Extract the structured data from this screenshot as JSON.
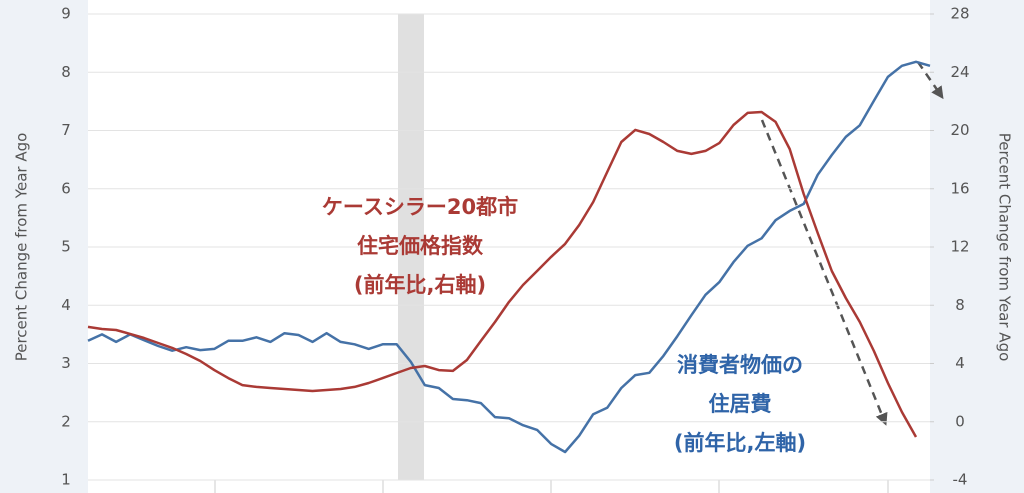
{
  "chart_data": {
    "type": "line",
    "y_label": "Percent Change from Year Ago",
    "y2_label": "Percent Change from Year Ago",
    "categories": [
      null,
      null,
      null,
      null,
      null,
      null,
      null,
      null,
      null,
      null,
      null,
      null,
      null,
      null,
      null,
      null,
      null,
      null,
      null,
      null,
      null,
      null,
      null,
      null,
      null,
      null,
      null,
      null,
      null,
      null,
      null,
      null,
      null,
      null,
      null,
      null,
      null,
      null,
      null,
      null,
      null,
      null,
      null,
      null,
      null,
      null,
      null,
      null,
      null,
      null,
      null,
      null,
      null,
      null,
      null,
      null,
      null,
      null,
      null,
      null,
      null
    ],
    "series": [
      {
        "name": "消費者物価の住居費",
        "color": "#4572a7",
        "axis": "y",
        "values": [
          3.39,
          3.5,
          3.37,
          3.5,
          3.4,
          3.3,
          3.22,
          3.28,
          3.23,
          3.25,
          3.39,
          3.39,
          3.45,
          3.37,
          3.52,
          3.49,
          3.37,
          3.52,
          3.37,
          3.33,
          3.25,
          3.33,
          3.33,
          3.03,
          2.63,
          2.58,
          2.39,
          2.37,
          2.32,
          2.08,
          2.06,
          1.94,
          1.86,
          1.62,
          1.48,
          1.76,
          2.13,
          2.24,
          2.58,
          2.8,
          2.84,
          3.13,
          3.47,
          3.83,
          4.18,
          4.4,
          4.74,
          5.02,
          5.15,
          5.46,
          5.62,
          5.74,
          6.24,
          6.58,
          6.89,
          7.09,
          7.51,
          7.92,
          8.11,
          8.18,
          8.11
        ]
      },
      {
        "name": "ケースシラー20都市住宅価格指数",
        "color": "#aa3a35",
        "axis": "y2",
        "values": [
          6.51,
          6.37,
          6.3,
          6.03,
          5.75,
          5.41,
          5.07,
          4.65,
          4.17,
          3.55,
          3.0,
          2.52,
          2.39,
          2.32,
          2.25,
          2.18,
          2.11,
          2.18,
          2.25,
          2.39,
          2.66,
          3.0,
          3.35,
          3.69,
          3.83,
          3.55,
          3.49,
          4.24,
          5.55,
          6.85,
          8.23,
          9.39,
          10.35,
          11.32,
          12.21,
          13.51,
          15.09,
          17.15,
          19.21,
          20.04,
          19.76,
          19.21,
          18.6,
          18.39,
          18.6,
          19.15,
          20.38,
          21.21,
          21.27,
          20.59,
          18.73,
          15.64,
          12.96,
          10.35,
          8.5,
          6.85,
          4.86,
          2.66,
          0.67,
          -1.05,
          null
        ]
      }
    ],
    "annotations": [
      {
        "lines": [
          "ケースシラー20都市",
          "住宅価格指数",
          "(前年比,右軸)"
        ],
        "color": "#aa3a35"
      },
      {
        "lines": [
          "消費者物価の",
          "住居費",
          "(前年比,左軸)"
        ],
        "color": "#2f64a8"
      }
    ],
    "ylim": [
      1,
      9
    ],
    "yticks": [
      1,
      2,
      3,
      4,
      5,
      6,
      7,
      8,
      9
    ],
    "y2lim": [
      -4,
      28
    ],
    "y2ticks": [
      -4,
      0,
      4,
      8,
      12,
      16,
      20,
      24,
      28
    ],
    "grid": true
  }
}
